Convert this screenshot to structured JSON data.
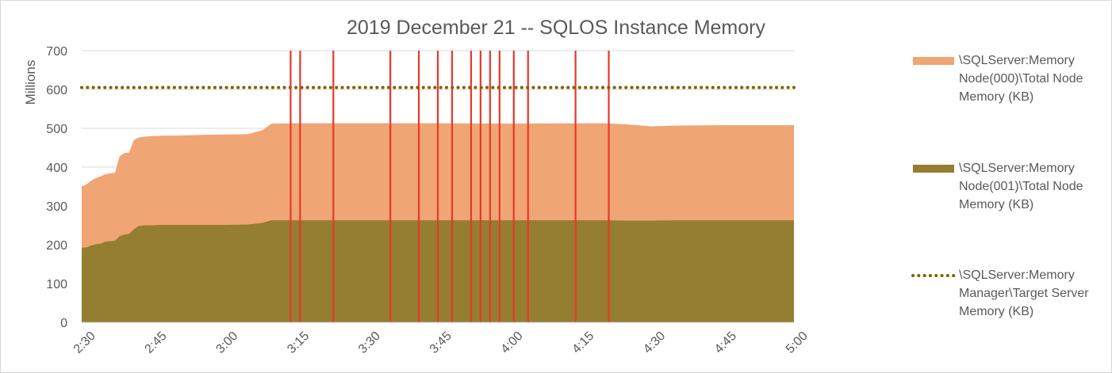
{
  "chart_data": {
    "type": "area",
    "title": "2019 December 21 -- SQLOS Instance Memory",
    "ylabel": "Millions",
    "xlabel": "",
    "ylim": [
      0,
      700
    ],
    "yticks": [
      "0",
      "100",
      "200",
      "300",
      "400",
      "500",
      "600",
      "700"
    ],
    "xticks": [
      "2:30",
      "2:45",
      "3:00",
      "3:15",
      "3:30",
      "3:45",
      "4:00",
      "4:15",
      "4:30",
      "4:45",
      "5:00"
    ],
    "x_minutes_range": [
      150,
      300
    ],
    "grid": true,
    "legend_position": "right",
    "series": [
      {
        "name": "\\SQLServer:Memory Node(001)\\Total Node Memory (KB)",
        "kind": "stacked-area",
        "color": "#957d31",
        "x": [
          "2:30",
          "2:31",
          "2:32",
          "2:33",
          "2:34",
          "2:35",
          "2:36",
          "2:37",
          "2:38",
          "2:39",
          "2:40",
          "2:41",
          "2:42",
          "2:43",
          "2:44",
          "2:45",
          "2:46",
          "2:47",
          "2:50",
          "2:55",
          "3:00",
          "3:05",
          "3:08",
          "3:10",
          "3:15",
          "3:30",
          "3:45",
          "4:00",
          "4:15",
          "4:20",
          "4:25",
          "4:30",
          "4:35",
          "4:45",
          "5:00"
        ],
        "values": [
          192,
          193,
          198,
          201,
          203,
          208,
          209,
          210,
          222,
          226,
          228,
          240,
          248,
          250,
          250,
          250,
          251,
          251,
          251,
          251,
          251,
          252,
          256,
          263,
          263,
          263,
          263,
          263,
          263,
          263,
          262,
          262,
          263,
          263,
          263
        ]
      },
      {
        "name": "\\SQLServer:Memory Node(000)\\Total Node Memory (KB)",
        "kind": "stacked-area-top",
        "color": "#f0a574",
        "x": [
          "2:30",
          "2:31",
          "2:32",
          "2:33",
          "2:34",
          "2:35",
          "2:36",
          "2:37",
          "2:38",
          "2:39",
          "2:40",
          "2:41",
          "2:42",
          "2:43",
          "2:44",
          "2:45",
          "2:46",
          "2:47",
          "2:50",
          "2:55",
          "3:00",
          "3:05",
          "3:08",
          "3:10",
          "3:15",
          "3:30",
          "3:45",
          "4:00",
          "4:15",
          "4:20",
          "4:25",
          "4:30",
          "4:35",
          "4:45",
          "5:00"
        ],
        "values": [
          350,
          355,
          365,
          372,
          376,
          382,
          384,
          385,
          428,
          436,
          438,
          470,
          476,
          478,
          479,
          480,
          480,
          481,
          481,
          483,
          484,
          485,
          495,
          512,
          513,
          513,
          513,
          512,
          513,
          513,
          510,
          505,
          507,
          508,
          508
        ]
      },
      {
        "name": "\\SQLServer:Memory Manager\\Target Server Memory (KB)",
        "kind": "dotted-line",
        "color": "#7f6000",
        "value": 605
      }
    ],
    "vertical_markers": {
      "color": "#e8382a",
      "x": [
        "3:14",
        "3:16",
        "3:23",
        "3:35",
        "3:41",
        "3:45",
        "3:48",
        "3:52",
        "3:54",
        "3:56",
        "3:58",
        "4:01",
        "4:04",
        "4:14",
        "4:21"
      ]
    }
  }
}
